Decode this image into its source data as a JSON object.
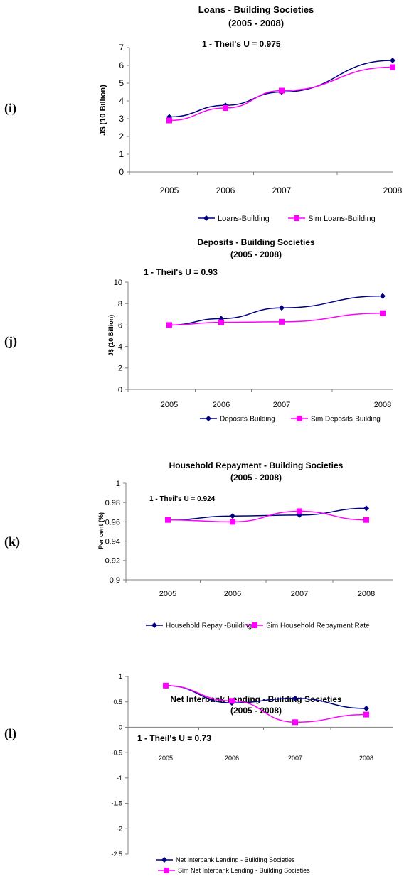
{
  "panels": [
    "(i)",
    "(j)",
    "(k)",
    "(l)"
  ],
  "chart_data": [
    {
      "type": "line",
      "title": "Loans - Building Societies",
      "subtitle": "(2005 - 2008)",
      "annotation": "1 - Theil's U  =  0.975",
      "ylabel": "J$ (10 Billion)",
      "xlabel": "",
      "categories": [
        "2005",
        "2006",
        "2007",
        "2008"
      ],
      "ylim": [
        0,
        7
      ],
      "yticks": [
        "0",
        "1",
        "2",
        "3",
        "4",
        "5",
        "6",
        "7"
      ],
      "grid": false,
      "legend_position": "bottom",
      "series": [
        {
          "name": "Loans-Building",
          "values": [
            3.1,
            3.75,
            4.5,
            6.28
          ],
          "color": "#000080",
          "marker": "diamond"
        },
        {
          "name": "Sim Loans-Building",
          "values": [
            2.9,
            3.6,
            4.58,
            5.9
          ],
          "color": "#ff00ff",
          "marker": "square"
        }
      ]
    },
    {
      "type": "line",
      "title": "Deposits - Building Societies",
      "subtitle": "(2005 - 2008)",
      "annotation": "1 - Theil's U  =  0.93",
      "ylabel": "J$ (10 Billion)",
      "xlabel": "",
      "categories": [
        "2005",
        "2006",
        "2007",
        "2008"
      ],
      "ylim": [
        0,
        10
      ],
      "yticks": [
        "0",
        "2",
        "4",
        "6",
        "8",
        "10"
      ],
      "grid": false,
      "legend_position": "bottom",
      "series": [
        {
          "name": "Deposits-Building",
          "values": [
            6.0,
            6.6,
            7.6,
            8.7
          ],
          "color": "#000080",
          "marker": "diamond"
        },
        {
          "name": "Sim Deposits-Building",
          "values": [
            6.0,
            6.25,
            6.3,
            7.1
          ],
          "color": "#ff00ff",
          "marker": "square"
        }
      ]
    },
    {
      "type": "line",
      "title": "Household Repayment - Building Societies",
      "subtitle": "(2005 - 2008)",
      "annotation": "1 - Theil's U  =  0.924",
      "ylabel": "Per cent (%)",
      "xlabel": "",
      "categories": [
        "2005",
        "2006",
        "2007",
        "2008"
      ],
      "ylim": [
        0.9,
        1
      ],
      "yticks": [
        "0.9",
        "0.92",
        "0.94",
        "0.96",
        "0.98",
        "1"
      ],
      "grid": false,
      "legend_position": "bottom",
      "series": [
        {
          "name": "Household Repay -Building",
          "values": [
            0.962,
            0.966,
            0.967,
            0.974
          ],
          "color": "#000080",
          "marker": "diamond"
        },
        {
          "name": "Sim Household Repayment Rate",
          "values": [
            0.962,
            0.96,
            0.971,
            0.962
          ],
          "color": "#ff00ff",
          "marker": "square"
        }
      ]
    },
    {
      "type": "line",
      "title": "Net Interbank Lending  - Building Societies",
      "subtitle": "(2005 - 2008)",
      "annotation": "1 - Theil's U  =  0.73",
      "ylabel": "",
      "xlabel": "",
      "categories": [
        "2005",
        "2006",
        "2007",
        "2008"
      ],
      "ylim": [
        -2.5,
        1
      ],
      "yticks": [
        "-2.5",
        "-2",
        "-1.5",
        "-1",
        "-0.5",
        "0",
        "0.5",
        "1"
      ],
      "grid": false,
      "legend_position": "bottom",
      "series": [
        {
          "name": "Net Interbank Lending - Building Societies",
          "values": [
            0.82,
            0.48,
            0.57,
            0.37
          ],
          "color": "#000080",
          "marker": "diamond"
        },
        {
          "name": "Sim Net Interbank Lending - Building Societies",
          "values": [
            0.82,
            0.52,
            0.1,
            0.25
          ],
          "color": "#ff00ff",
          "marker": "square"
        }
      ]
    }
  ]
}
